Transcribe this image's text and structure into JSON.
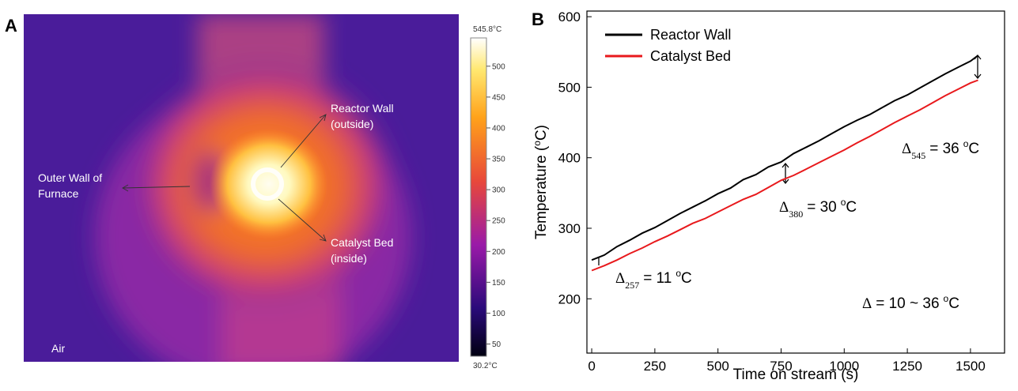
{
  "panel_a": {
    "panel_label": "A",
    "annotations": [
      {
        "lines": [
          "Reactor Wall",
          "(outside)"
        ]
      },
      {
        "lines": [
          "Outer Wall of",
          "Furnace"
        ]
      },
      {
        "lines": [
          "Catalyst Bed",
          "(inside)"
        ]
      },
      {
        "lines": [
          "Air"
        ]
      }
    ],
    "colorbar": {
      "clim": [
        {
          "value": 30.2,
          "label": "30.2°C"
        },
        {
          "value": 545.8,
          "label": "545.8°C"
        }
      ],
      "cticks": [
        50,
        100,
        150,
        200,
        250,
        300,
        350,
        400,
        450,
        500
      ]
    }
  },
  "chart_data": {
    "type": "line",
    "panel_label": "B",
    "x_label": "Time on stream (s)",
    "y_label": {
      "before": "Temperature (",
      "sup": "o",
      "after": "C)"
    },
    "x": [
      0,
      50,
      100,
      150,
      200,
      250,
      300,
      350,
      400,
      450,
      500,
      550,
      600,
      650,
      700,
      750,
      800,
      850,
      900,
      950,
      1000,
      1050,
      1100,
      1150,
      1200,
      1250,
      1300,
      1350,
      1400,
      1450,
      1500,
      1530
    ],
    "series": [
      {
        "name": "Reactor Wall",
        "color": "#000000",
        "values": [
          255,
          262,
          274,
          283,
          293,
          301,
          311,
          321,
          330,
          339,
          349,
          357,
          369,
          376,
          387,
          394,
          406,
          415,
          424,
          434,
          444,
          453,
          461,
          471,
          481,
          489,
          499,
          509,
          519,
          528,
          537,
          545
        ]
      },
      {
        "name": "Catalyst Bed",
        "color": "#e8191c",
        "values": [
          240,
          247,
          255,
          264,
          272,
          281,
          289,
          298,
          307,
          314,
          323,
          332,
          341,
          348,
          358,
          368,
          375,
          384,
          393,
          402,
          411,
          421,
          430,
          440,
          450,
          459,
          468,
          478,
          488,
          497,
          506,
          510
        ]
      }
    ],
    "xlim": [
      -19,
      1635
    ],
    "ylim": [
      123,
      608
    ],
    "xticks": [
      0,
      250,
      500,
      750,
      1000,
      1250,
      1500
    ],
    "yticks": [
      200,
      300,
      400,
      500,
      600
    ],
    "legend": "upper left",
    "annotations": [
      {
        "symbol": "Δ",
        "sub": "257",
        "eq": "= 11",
        "sup": "o",
        "unit": "C"
      },
      {
        "symbol": "Δ",
        "sub": "380",
        "eq": "= 30",
        "sup": "o",
        "unit": "C"
      },
      {
        "symbol": "Δ",
        "sub": "545",
        "eq": "= 36",
        "sup": "o",
        "unit": "C"
      },
      {
        "symbol": "Δ",
        "eq": "= 10 ~ 36",
        "sup": "o",
        "unit": "C"
      }
    ]
  }
}
